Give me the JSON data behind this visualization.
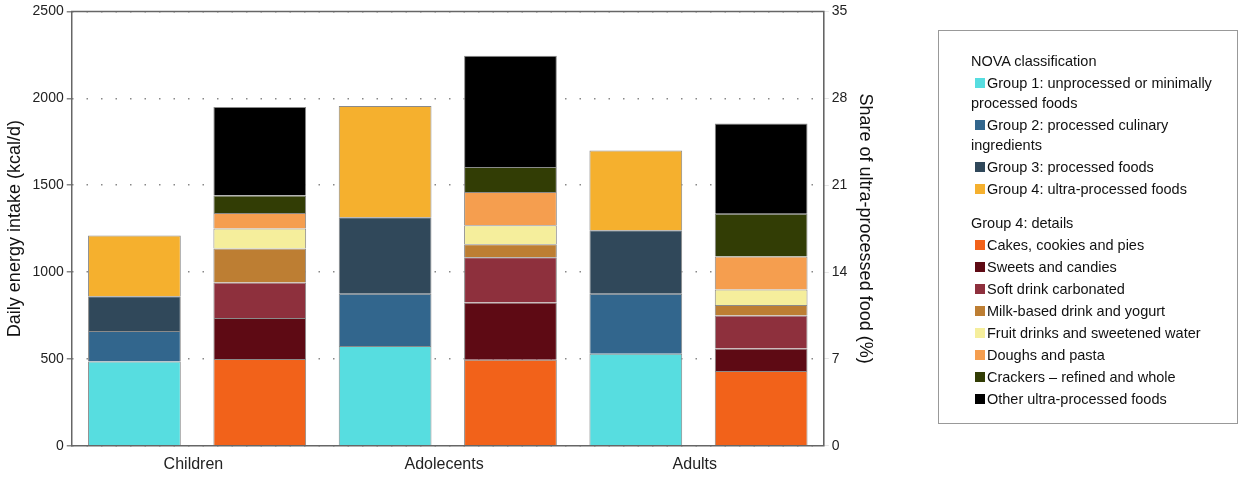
{
  "chart_data": {
    "type": "bar",
    "stacked": true,
    "categories": [
      "Children",
      null,
      "Adolecents",
      null,
      "Adults",
      null
    ],
    "ylabel": "Daily energy intake (kcal/d)",
    "y2label": "Share of ultra-processed food (%)",
    "ylim": [
      0,
      2500
    ],
    "yticks": [
      0,
      500,
      1000,
      1500,
      2000,
      2500
    ],
    "y2lim": [
      0,
      35
    ],
    "y2ticks": [
      0,
      7,
      14,
      21,
      28,
      35
    ],
    "grid": "y",
    "legend": "right",
    "legend_title": [
      "NOVA classification",
      "Group 4: details"
    ],
    "series": [
      {
        "name": "Group 1: unprocessed or minimally processed foods",
        "color": "#57dde0",
        "values": [
          485,
          null,
          575,
          null,
          530,
          null
        ]
      },
      {
        "name": "Group 2: processed culinary ingredients",
        "color": "#32668d",
        "values": [
          175,
          null,
          300,
          null,
          345,
          null
        ]
      },
      {
        "name": "Group 3: processed  foods",
        "color": "#30485a",
        "values": [
          200,
          null,
          440,
          null,
          365,
          null
        ]
      },
      {
        "name": "Group 4: ultra-processed foods",
        "color": "#f5b02e",
        "values": [
          350,
          null,
          640,
          null,
          460,
          null
        ]
      },
      {
        "name": "Cakes, cookies and pies",
        "color": "#f2621a",
        "values": [
          null,
          500,
          null,
          495,
          null,
          430
        ]
      },
      {
        "name": "Sweets and candies",
        "color": "#5e0a14",
        "values": [
          null,
          235,
          null,
          330,
          null,
          130
        ]
      },
      {
        "name": "Soft drink carbonated",
        "color": "#8e303d",
        "values": [
          null,
          205,
          null,
          260,
          null,
          190
        ]
      },
      {
        "name": "Milk-based drink and yogurt",
        "color": "#bd7e33",
        "values": [
          null,
          195,
          null,
          75,
          null,
          60
        ]
      },
      {
        "name": "Fruit drinks and sweetened water",
        "color": "#f5ee9c",
        "values": [
          null,
          115,
          null,
          110,
          null,
          90
        ]
      },
      {
        "name": "Doughs and pasta",
        "color": "#f59e4f",
        "values": [
          null,
          90,
          null,
          190,
          null,
          190
        ]
      },
      {
        "name": "Crackers – refined and whole",
        "color": "#323d05",
        "values": [
          null,
          100,
          null,
          145,
          null,
          245
        ]
      },
      {
        "name": "Other ultra-processed foods",
        "color": "#000000",
        "values": [
          null,
          510,
          null,
          640,
          null,
          520
        ]
      }
    ]
  }
}
